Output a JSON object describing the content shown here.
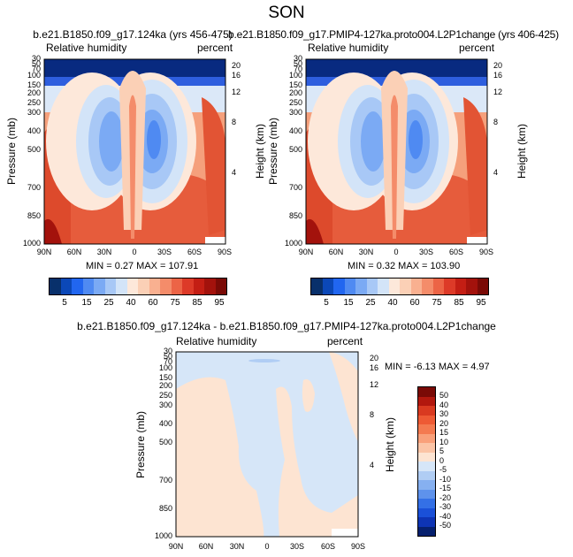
{
  "page": {
    "title": "SON"
  },
  "panels": [
    {
      "title": "b.e21.B1850.f09_g17.124ka (yrs 456-475)",
      "left_label": "Relative humidity",
      "right_label": "percent",
      "ylabel_left": "Pressure (mb)",
      "ylabel_right": "Height (km)",
      "stats": "MIN =   0.27  MAX = 107.91"
    },
    {
      "title": "b.e21.B1850.f09_g17.PMIP4-127ka.proto004.L2P1change (yrs 406-425)",
      "left_label": "Relative humidity",
      "right_label": "percent",
      "ylabel_left": "Pressure (mb)",
      "ylabel_right": "Height (km)",
      "stats": "MIN =   0.32  MAX = 103.90"
    },
    {
      "title": "b.e21.B1850.f09_g17.124ka - b.e21.B1850.f09_g17.PMIP4-127ka.proto004.L2P1change",
      "left_label": "Relative humidity",
      "right_label": "percent",
      "ylabel_left": "Pressure (mb)",
      "ylabel_right": "Height (km)",
      "stats": "MIN =  -6.13  MAX =   4.97"
    }
  ],
  "chart_data": [
    {
      "type": "heatmap",
      "title": "b.e21.B1850.f09_g17.124ka (yrs 456-475)",
      "xlabel": "",
      "ylabel": "Pressure (mb)",
      "y2label": "Height (km)",
      "x_ticks": [
        "90N",
        "60N",
        "30N",
        "0",
        "30S",
        "60S",
        "90S"
      ],
      "y_ticks": [
        "30",
        "50",
        "70",
        "100",
        "150",
        "200",
        "250",
        "300",
        "400",
        "500",
        "700",
        "850",
        "1000"
      ],
      "y2_ticks": [
        "20",
        "16",
        "12",
        "8",
        "4"
      ],
      "min": 0.27,
      "max": 107.91,
      "colorbar": {
        "levels": [
          "5",
          "15",
          "25",
          "40",
          "60",
          "75",
          "85",
          "95"
        ],
        "colors": [
          "#08306b",
          "#0b48b8",
          "#2166f0",
          "#4f8af2",
          "#7baaf4",
          "#a8c8f6",
          "#d3e4f8",
          "#fde8da",
          "#fbd0b6",
          "#f9b090",
          "#f48c6a",
          "#ec6446",
          "#dd3a28",
          "#c41e14",
          "#a3120c",
          "#7a0a06"
        ]
      }
    },
    {
      "type": "heatmap",
      "title": "b.e21.B1850.f09_g17.PMIP4-127ka.proto004.L2P1change (yrs 406-425)",
      "xlabel": "",
      "ylabel": "Pressure (mb)",
      "y2label": "Height (km)",
      "x_ticks": [
        "90N",
        "60N",
        "30N",
        "0",
        "30S",
        "60S",
        "90S"
      ],
      "y_ticks": [
        "30",
        "50",
        "70",
        "100",
        "150",
        "200",
        "250",
        "300",
        "400",
        "500",
        "700",
        "850",
        "1000"
      ],
      "y2_ticks": [
        "20",
        "16",
        "12",
        "8",
        "4"
      ],
      "min": 0.32,
      "max": 103.9,
      "colorbar": {
        "levels": [
          "5",
          "15",
          "25",
          "40",
          "60",
          "75",
          "85",
          "95"
        ],
        "colors": [
          "#08306b",
          "#0b48b8",
          "#2166f0",
          "#4f8af2",
          "#7baaf4",
          "#a8c8f6",
          "#d3e4f8",
          "#fde8da",
          "#fbd0b6",
          "#f9b090",
          "#f48c6a",
          "#ec6446",
          "#dd3a28",
          "#c41e14",
          "#a3120c",
          "#7a0a06"
        ]
      }
    },
    {
      "type": "heatmap",
      "title": "b.e21.B1850.f09_g17.124ka - b.e21.B1850.f09_g17.PMIP4-127ka.proto004.L2P1change",
      "xlabel": "",
      "ylabel": "Pressure (mb)",
      "y2label": "Height (km)",
      "x_ticks": [
        "90N",
        "60N",
        "30N",
        "0",
        "30S",
        "60S",
        "90S"
      ],
      "y_ticks": [
        "30",
        "50",
        "70",
        "100",
        "150",
        "200",
        "250",
        "300",
        "400",
        "500",
        "700",
        "850",
        "1000"
      ],
      "y2_ticks": [
        "20",
        "16",
        "12",
        "8",
        "4"
      ],
      "min": -6.13,
      "max": 4.97,
      "colorbar": {
        "levels": [
          "50",
          "40",
          "30",
          "20",
          "15",
          "10",
          "5",
          "0",
          "-5",
          "-10",
          "-15",
          "-20",
          "-30",
          "-40",
          "-50"
        ],
        "colors": [
          "#7a0a06",
          "#b2180e",
          "#d93a20",
          "#ee5a34",
          "#f47a50",
          "#f9a07a",
          "#fbc4a6",
          "#fde4d2",
          "#d6e6f8",
          "#b0cdf4",
          "#86b0f0",
          "#5e92ec",
          "#3470e6",
          "#1a50d8",
          "#0e34b4",
          "#06206e"
        ]
      }
    }
  ]
}
